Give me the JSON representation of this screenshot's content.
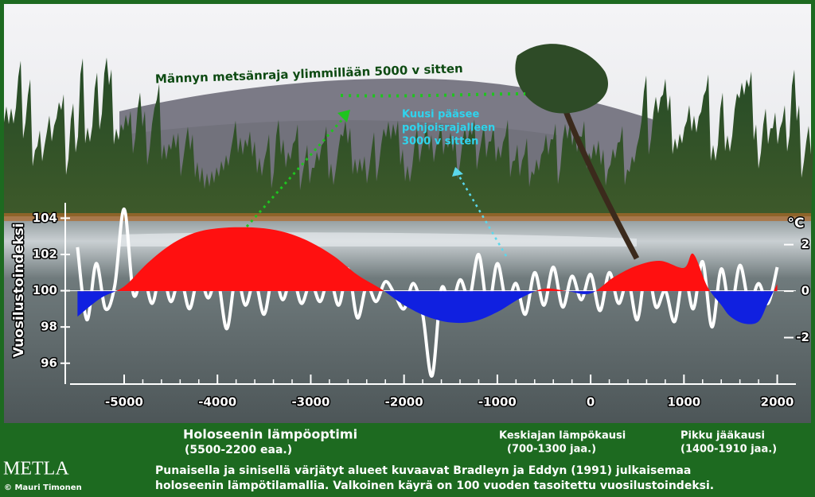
{
  "chart_data": {
    "type": "line",
    "annotations": [
      "Männyn metsänraja ylimmillään 5000 v  sitten",
      "Kuusi pääsee",
      "pohjoisrajalleen",
      "3000 v sitten"
    ],
    "ylabel": "Vuosilustoindeksi",
    "y2label": "°C",
    "xlim": [
      -5580,
      2200
    ],
    "xticks": [
      -5000,
      -4000,
      -3000,
      -2000,
      -1000,
      0,
      1000,
      2000
    ],
    "ylim": [
      94.85,
      104.85
    ],
    "yticks": [
      96,
      98,
      100,
      102,
      104
    ],
    "y2lim": [
      -4,
      3.8
    ],
    "y2ticks": [
      -2,
      0,
      2
    ],
    "series": [
      {
        "color": "#ffffff",
        "x": [
          -5500,
          -5400,
          -5300,
          -5200,
          -5100,
          -5000,
          -4900,
          -4800,
          -4700,
          -4600,
          -4500,
          -4400,
          -4300,
          -4200,
          -4100,
          -4000,
          -3900,
          -3800,
          -3700,
          -3600,
          -3500,
          -3400,
          -3300,
          -3200,
          -3100,
          -3000,
          -2900,
          -2800,
          -2700,
          -2600,
          -2500,
          -2400,
          -2300,
          -2200,
          -2100,
          -2000,
          -1900,
          -1800,
          -1700,
          -1600,
          -1500,
          -1400,
          -1300,
          -1200,
          -1100,
          -1000,
          -900,
          -800,
          -700,
          -600,
          -500,
          -400,
          -300,
          -200,
          -100,
          0,
          100,
          200,
          300,
          400,
          500,
          600,
          700,
          800,
          900,
          1000,
          1100,
          1200,
          1300,
          1400,
          1500,
          1600,
          1700,
          1800,
          1900,
          2000
        ],
        "values": [
          102.4,
          98.4,
          101.5,
          99.0,
          100.3,
          104.5,
          99.8,
          101.0,
          99.3,
          101.2,
          99.4,
          100.8,
          99.0,
          100.9,
          99.6,
          100.7,
          97.9,
          100.9,
          99.2,
          100.6,
          98.7,
          101.0,
          99.5,
          100.9,
          99.3,
          100.5,
          99.4,
          100.8,
          99.2,
          101.2,
          98.5,
          100.3,
          99.4,
          100.5,
          99.8,
          99.0,
          100.4,
          98.7,
          95.3,
          100.1,
          99.0,
          100.6,
          99.6,
          102.0,
          99.0,
          101.5,
          99.3,
          100.4,
          98.7,
          101.0,
          99.2,
          101.3,
          99.1,
          100.8,
          99.5,
          100.9,
          98.9,
          101.0,
          99.3,
          100.6,
          98.4,
          101.4,
          99.1,
          100.0,
          98.3,
          101.0,
          99.0,
          101.6,
          98.0,
          101.2,
          98.9,
          101.4,
          99.3,
          100.4,
          99.3,
          101.3
        ]
      },
      {
        "axis": "y2",
        "pos_color": "#ff1010",
        "neg_color": "#1020e0",
        "x": [
          -5500,
          -5250,
          -5000,
          -4750,
          -4500,
          -4250,
          -4000,
          -3750,
          -3500,
          -3250,
          -3000,
          -2750,
          -2500,
          -2250,
          -2000,
          -1750,
          -1500,
          -1250,
          -1000,
          -750,
          -500,
          -250,
          0,
          250,
          500,
          750,
          1000,
          1100,
          1250,
          1400,
          1500,
          1650,
          1800,
          1900,
          2000
        ],
        "values": [
          -1.1,
          -0.3,
          0.2,
          1.2,
          2.0,
          2.5,
          2.7,
          2.75,
          2.7,
          2.5,
          2.1,
          1.5,
          0.7,
          0.1,
          -0.6,
          -1.1,
          -1.35,
          -1.3,
          -0.9,
          -0.3,
          0.1,
          0.0,
          -0.1,
          0.6,
          1.1,
          1.3,
          1.0,
          1.6,
          0.2,
          -0.6,
          -1.1,
          -1.4,
          -1.3,
          -0.5,
          0.3
        ]
      }
    ]
  },
  "footer": {
    "periods": [
      {
        "name": "Holoseenin lämpöoptimi",
        "range": "(5500-2200 eaa.)"
      },
      {
        "name": "Keskiajan lämpökausi",
        "range": "(700-1300 jaa.)"
      },
      {
        "name": "Pikku jääkausi",
        "range": "(1400-1910 jaa.)"
      }
    ],
    "logo": "METLA",
    "credit": "© Mauri Timonen",
    "caption": [
      "Punaisella ja sinisellä värjätyt alueet kuvaavat Bradleyn ja Eddyn (1991)  julkaisemaa",
      "holoseenin lämpötilamallia. Valkoinen käyrä on 100 vuoden tasoitettu vuosilustoindeksi."
    ]
  }
}
